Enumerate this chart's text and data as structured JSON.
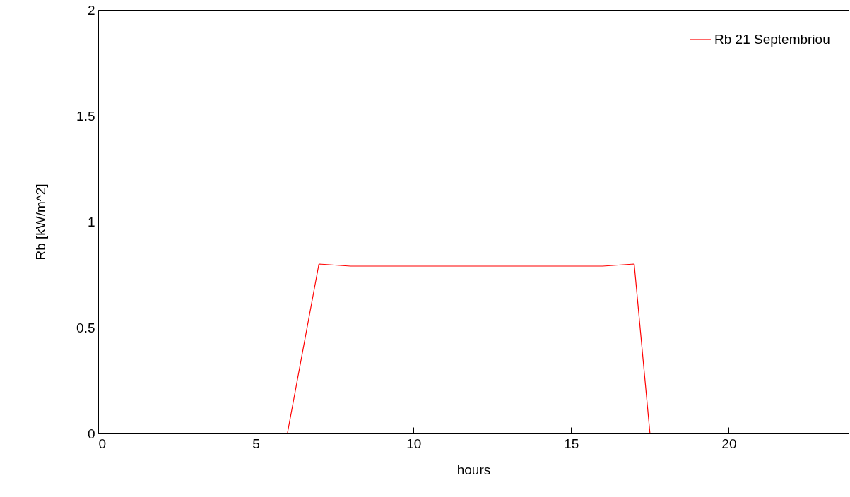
{
  "chart_data": {
    "type": "line",
    "xlabel": "hours",
    "ylabel": "Rb [kW/m^2]",
    "x": [
      0,
      1,
      2,
      3,
      4,
      5,
      6,
      7,
      8,
      9,
      10,
      11,
      12,
      13,
      14,
      15,
      16,
      17,
      17.5,
      18,
      19,
      20,
      21,
      22,
      23
    ],
    "series": [
      {
        "name": "Rb 21 Septembriou",
        "color": "#ff0000",
        "values": [
          0,
          0,
          0,
          0,
          0,
          0,
          0,
          0.8,
          0.79,
          0.79,
          0.79,
          0.79,
          0.79,
          0.79,
          0.79,
          0.79,
          0.79,
          0.8,
          0,
          0,
          0,
          0,
          0,
          0,
          0
        ]
      }
    ],
    "xlim": [
      0,
      23.8
    ],
    "xticks": [
      0,
      5,
      10,
      15,
      20
    ],
    "ylim": [
      0,
      2
    ],
    "yticks": [
      0,
      0.5,
      1,
      1.5,
      2
    ],
    "grid": false,
    "legend": "top right",
    "marker": "none",
    "line_style": "solid"
  }
}
